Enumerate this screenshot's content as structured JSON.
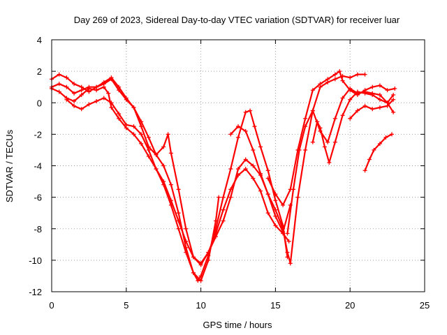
{
  "chart_data": {
    "type": "scatter",
    "title": "Day 269 of 2023, Sidereal Day-to-day VTEC variation (SDTVAR) for receiver luar",
    "xlabel": "GPS time / hours",
    "ylabel": "SDTVAR / TECUs",
    "xlim": [
      0,
      25
    ],
    "ylim": [
      -12,
      4
    ],
    "xticks": [
      "0",
      "5",
      "10",
      "15",
      "20",
      "25"
    ],
    "yticks": [
      "-12",
      "-10",
      "-8",
      "-6",
      "-4",
      "-2",
      "0",
      "2",
      "4"
    ],
    "grid": true,
    "marker": "+",
    "color": "#ff0000",
    "series": [
      {
        "name": "track-1",
        "x": [
          0.0,
          0.5,
          1.0,
          1.5,
          2.0,
          2.5,
          3.0,
          3.5,
          4.0,
          4.5,
          5.0,
          5.5,
          6.0,
          6.5,
          7.0,
          7.5,
          8.0,
          8.5,
          9.0,
          9.5,
          10.0,
          10.5,
          11.0,
          11.2
        ],
        "y": [
          1.5,
          1.8,
          1.6,
          1.2,
          1.0,
          0.7,
          1.0,
          1.2,
          1.5,
          0.8,
          0.2,
          -0.3,
          -1.2,
          -2.2,
          -3.3,
          -4.0,
          -5.2,
          -7.0,
          -9.2,
          -10.8,
          -11.3,
          -10.0,
          -7.5,
          -6.0
        ]
      },
      {
        "name": "track-2",
        "x": [
          0.0,
          0.5,
          1.0,
          1.5,
          2.0,
          2.5,
          3.0,
          3.5,
          4.0,
          4.5,
          5.0,
          5.5,
          6.0,
          6.5,
          7.0,
          7.5,
          7.8,
          8.0,
          8.5,
          9.0,
          9.5,
          10.0,
          10.5,
          11.0,
          11.5,
          12.0,
          12.5,
          13.0,
          13.5,
          14.0,
          14.5,
          15.0,
          15.5,
          16.0
        ],
        "y": [
          1.0,
          1.2,
          1.0,
          0.6,
          0.8,
          1.0,
          1.0,
          1.3,
          1.6,
          1.0,
          0.3,
          -0.3,
          -1.5,
          -2.8,
          -3.3,
          -2.8,
          -2.0,
          -3.2,
          -5.5,
          -8.0,
          -9.8,
          -10.3,
          -9.5,
          -8.5,
          -7.5,
          -6.0,
          -4.2,
          -3.6,
          -4.0,
          -4.6,
          -5.8,
          -7.2,
          -8.2,
          -6.5
        ]
      },
      {
        "name": "track-3",
        "x": [
          0.0,
          0.5,
          1.0,
          1.5,
          2.0,
          2.5,
          3.0,
          3.5,
          3.8,
          4.0,
          4.5,
          5.0,
          5.5,
          6.0,
          6.5,
          7.0,
          7.5,
          8.0,
          8.5,
          9.0,
          9.5,
          10.0,
          10.5,
          11.0,
          11.5,
          12.0,
          12.5,
          13.0,
          13.5,
          14.0,
          14.5,
          15.0,
          15.5,
          15.9
        ],
        "y": [
          0.9,
          0.7,
          0.3,
          0.1,
          0.5,
          0.9,
          0.8,
          1.0,
          0.6,
          -0.3,
          -1.0,
          -1.6,
          -2.0,
          -2.6,
          -3.4,
          -4.2,
          -5.0,
          -6.2,
          -7.5,
          -8.8,
          -9.8,
          -10.2,
          -9.5,
          -8.3,
          -6.8,
          -5.5,
          -4.6,
          -4.2,
          -4.8,
          -5.6,
          -7.0,
          -7.8,
          -8.3,
          -8.8
        ]
      },
      {
        "name": "track-4",
        "x": [
          1.0,
          1.5,
          2.0,
          2.5,
          3.0,
          3.5,
          4.0,
          4.5,
          5.0,
          5.5,
          6.0,
          6.5,
          7.0,
          7.5,
          8.0,
          8.5,
          9.0,
          9.5,
          9.8,
          10.0,
          10.5,
          11.0,
          11.5,
          12.0,
          12.5,
          13.0,
          13.3,
          13.6,
          14.0,
          14.5,
          15.0,
          15.5,
          15.8
        ],
        "y": [
          0.2,
          -0.2,
          -0.4,
          -0.1,
          0.1,
          0.3,
          0.0,
          -0.7,
          -1.4,
          -1.5,
          -2.0,
          -3.0,
          -4.2,
          -5.2,
          -6.5,
          -8.0,
          -9.5,
          -10.8,
          -11.3,
          -11.0,
          -9.7,
          -8.0,
          -6.0,
          -4.2,
          -2.2,
          -0.6,
          -0.5,
          -1.5,
          -2.8,
          -4.3,
          -6.2,
          -7.8,
          -9.8
        ]
      },
      {
        "name": "track-5",
        "x": [
          12.0,
          12.5,
          13.0,
          13.5,
          14.0,
          14.5,
          15.0,
          15.5,
          15.8,
          16.0,
          16.5,
          17.0,
          17.5,
          18.0,
          18.5,
          19.0,
          19.5,
          20.0,
          20.5,
          21.0
        ],
        "y": [
          -2.0,
          -1.5,
          -1.8,
          -3.0,
          -4.5,
          -5.8,
          -6.8,
          -8.0,
          -9.5,
          -10.2,
          -6.0,
          -3.0,
          -0.5,
          1.0,
          1.3,
          1.5,
          1.7,
          1.6,
          1.8,
          1.8
        ]
      },
      {
        "name": "track-6",
        "x": [
          14.5,
          15.0,
          15.5,
          16.0,
          16.5,
          17.0,
          17.5,
          18.0,
          18.5,
          19.0,
          19.3,
          19.5,
          20.0,
          20.5,
          21.0,
          21.5,
          22.0,
          22.5,
          23.0
        ],
        "y": [
          -4.8,
          -5.8,
          -6.5,
          -5.5,
          -3.0,
          -1.0,
          0.8,
          1.2,
          1.5,
          1.8,
          2.0,
          1.4,
          0.8,
          0.5,
          0.8,
          1.0,
          1.1,
          0.8,
          0.9
        ]
      },
      {
        "name": "track-7",
        "x": [
          15.8,
          16.2,
          16.6,
          17.0,
          17.5,
          18.0,
          18.5,
          19.0,
          19.5,
          20.0,
          20.5,
          21.0,
          21.5,
          22.0,
          22.5,
          22.9
        ],
        "y": [
          -8.3,
          -5.5,
          -3.0,
          -1.5,
          -0.5,
          -1.8,
          -2.5,
          -1.0,
          0.3,
          0.9,
          0.6,
          0.7,
          0.6,
          0.5,
          0.0,
          -0.6
        ]
      },
      {
        "name": "track-8",
        "x": [
          17.5,
          17.8,
          18.0,
          18.3,
          18.6,
          19.0,
          19.5,
          20.0,
          20.5,
          21.0,
          21.5,
          22.0,
          22.5,
          22.9
        ],
        "y": [
          -2.5,
          -1.2,
          -1.6,
          -2.8,
          -3.8,
          -2.5,
          -0.8,
          0.2,
          0.7,
          0.6,
          0.5,
          0.2,
          0.0,
          0.5
        ]
      },
      {
        "name": "track-9",
        "x": [
          20.0,
          20.5,
          21.0,
          21.5,
          22.0,
          22.5,
          22.9
        ],
        "y": [
          -1.0,
          -0.5,
          -0.2,
          -0.4,
          -0.3,
          -0.2,
          0.2
        ]
      },
      {
        "name": "track-10",
        "x": [
          21.0,
          21.3,
          21.6,
          22.0,
          22.4,
          22.8
        ],
        "y": [
          -4.3,
          -3.6,
          -3.0,
          -2.6,
          -2.2,
          -2.0
        ]
      }
    ]
  }
}
